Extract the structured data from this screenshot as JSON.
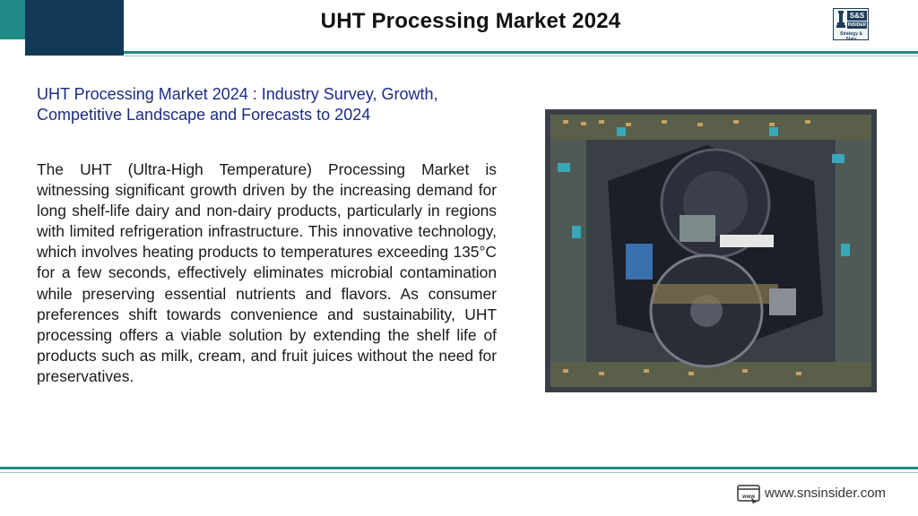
{
  "header": {
    "title": "UHT Processing Market 2024"
  },
  "logo": {
    "brand": "S&S",
    "brand_sub": "INSIDER",
    "tagline": "Strategy & Stats"
  },
  "content": {
    "subtitle": "UHT Processing Market 2024 : Industry Survey, Growth, Competitive Landscape and Forecasts to 2024",
    "paragraph": "The UHT (Ultra-High Temperature) Processing Market is witnessing significant growth driven by the increasing demand for long shelf-life dairy and non-dairy products, particularly in regions with limited refrigeration infrastructure. This innovative technology, which involves heating products to temperatures exceeding 135°C for a few seconds, effectively eliminates microbial contamination while preserving essential nutrients and flavors. As consumer preferences shift towards convenience and sustainability, UHT processing offers a viable solution by extending the shelf life of products such as milk, cream, and fruit juices without the need for preservatives."
  },
  "footer": {
    "url_icon": "www-browser-icon",
    "url": "www.snsinsider.com"
  },
  "colors": {
    "teal": "#1f8a86",
    "navy": "#123a57",
    "subtitle_blue": "#1c2b86"
  }
}
